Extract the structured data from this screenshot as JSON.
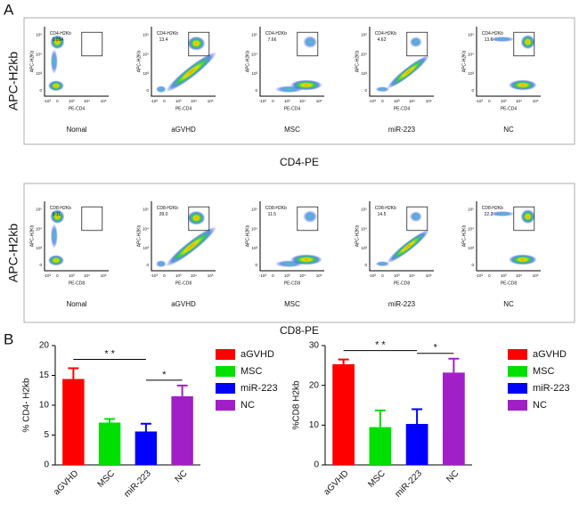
{
  "panel_a": {
    "label": "A",
    "tick_labels": [
      "-10³",
      "0",
      "10³",
      "10⁴",
      "10⁵"
    ],
    "rows": [
      {
        "y_label": "APC-H2kb",
        "x_title": "CD4-PE",
        "x_axis": "PE-CD4",
        "y_axis": "APC-H2Kb",
        "gate": "CD4-H2Kb",
        "plots": [
          {
            "sample": "Nomal",
            "value": "0.054"
          },
          {
            "sample": "aGVHD",
            "value": "13.4"
          },
          {
            "sample": "MSC",
            "value": "7.66"
          },
          {
            "sample": "miR-223",
            "value": "4.62"
          },
          {
            "sample": "NC",
            "value": "13.6"
          }
        ]
      },
      {
        "y_label": "APC-H2kb",
        "x_title": "CD8-PE",
        "x_axis": "PE-CD8",
        "y_axis": "APC-H2Kb",
        "gate": "CD8-H2Kb",
        "plots": [
          {
            "sample": "Nomal",
            "value": "0.11"
          },
          {
            "sample": "aGVHD",
            "value": "28.0"
          },
          {
            "sample": "MSC",
            "value": "11.5"
          },
          {
            "sample": "miR-223",
            "value": "14.5"
          },
          {
            "sample": "NC",
            "value": "22.2"
          }
        ]
      }
    ]
  },
  "panel_b": {
    "label": "B"
  },
  "chart_data": [
    {
      "type": "bar",
      "y_label": "% CD4- H2kb",
      "categories": [
        "aGVHD",
        "MSC",
        "miR-223",
        "NC"
      ],
      "values": [
        14.4,
        7.1,
        5.6,
        11.5
      ],
      "errors": [
        1.8,
        0.6,
        1.3,
        1.8
      ],
      "colors": [
        "#ff0000",
        "#00e000",
        "#0000ff",
        "#a11fc6"
      ],
      "ylim": [
        0,
        20
      ],
      "yticks": [
        0,
        5,
        10,
        15,
        20
      ],
      "legend": true,
      "annotations": [
        {
          "text": "* *",
          "from": "aGVHD",
          "to": "miR-223"
        },
        {
          "text": "*",
          "from": "miR-223",
          "to": "NC"
        }
      ]
    },
    {
      "type": "bar",
      "y_label": "%CD8 H2kb",
      "categories": [
        "aGVHD",
        "MSC",
        "miR-223",
        "NC"
      ],
      "values": [
        25.3,
        9.5,
        10.3,
        23.2
      ],
      "errors": [
        1.2,
        4.2,
        3.7,
        3.5
      ],
      "colors": [
        "#ff0000",
        "#00e000",
        "#0000ff",
        "#a11fc6"
      ],
      "ylim": [
        0,
        30
      ],
      "yticks": [
        0,
        10,
        20,
        30
      ],
      "legend": true,
      "annotations": [
        {
          "text": "* *",
          "from": "aGVHD",
          "to": "miR-223"
        },
        {
          "text": "*",
          "from": "miR-223",
          "to": "NC"
        }
      ]
    }
  ]
}
